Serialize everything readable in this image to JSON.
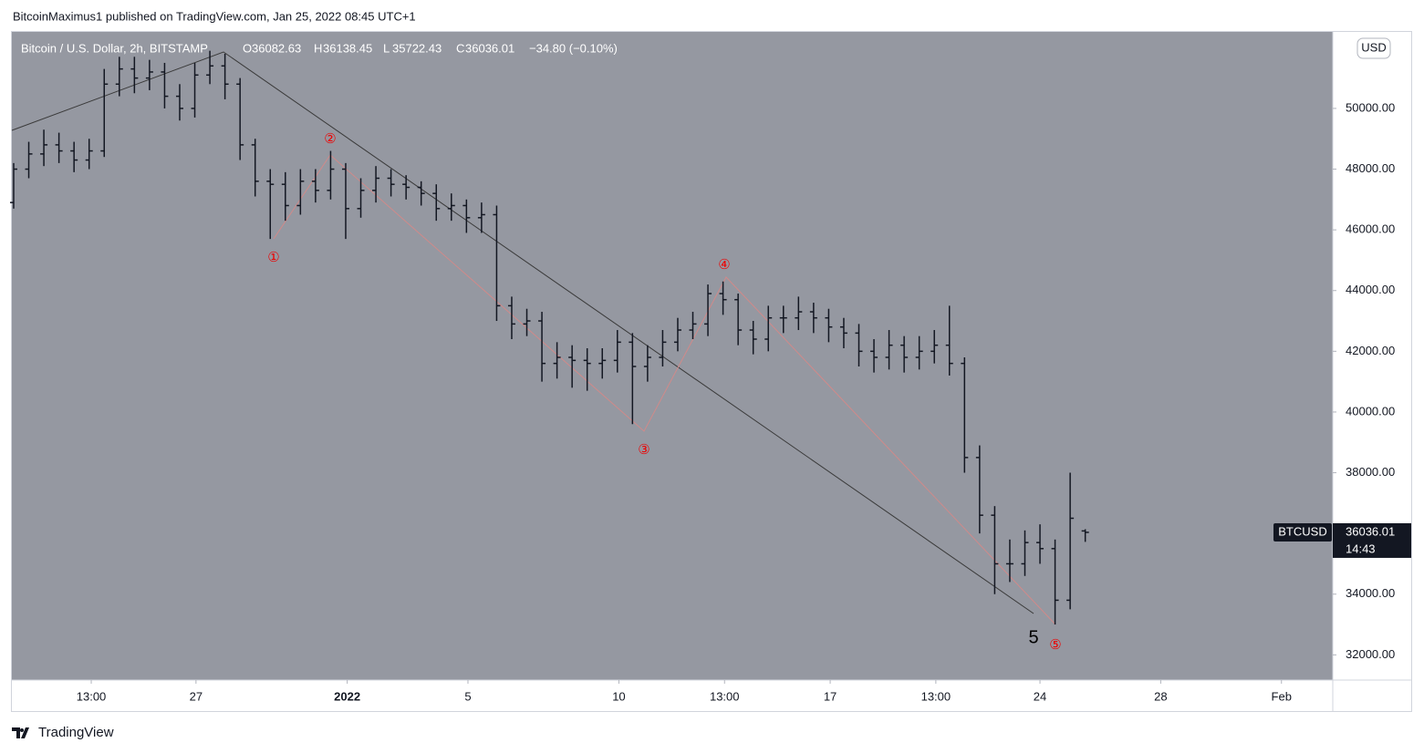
{
  "header": {
    "title": "BitcoinMaximus1 published on TradingView.com, Jan 25, 2022 08:45 UTC+1"
  },
  "footer": {
    "brand": "TradingView"
  },
  "chart_data": {
    "type": "ohlc",
    "title": "Bitcoin / U.S. Dollar, 2h, BITSTAMP",
    "legend_labels": [
      "O",
      "H",
      "L",
      "C"
    ],
    "change": "−34.80 (−0.10%)",
    "currency": "USD",
    "symbol": "BTCUSD",
    "countdown": "14:43",
    "color": "#131722",
    "background": "#9598a1",
    "open": [
      46900,
      48000,
      48500,
      48800,
      48600,
      48300,
      48600,
      50800,
      51300,
      51000,
      51200,
      50400,
      50000,
      51100,
      51400,
      50800,
      48800,
      47600,
      47500,
      46800,
      47600,
      47300,
      48000,
      46700,
      47300,
      47700,
      47500,
      47400,
      47200,
      46700,
      46800,
      46400,
      46500,
      43500,
      42900,
      43000,
      41600,
      41800,
      41700,
      41600,
      41700,
      42300,
      41500,
      41800,
      42300,
      42700,
      42900,
      43900,
      43700,
      42700,
      42400,
      43100,
      43100,
      43300,
      43100,
      42800,
      42600,
      42000,
      41800,
      42200,
      41800,
      42000,
      42200,
      41600,
      38500,
      36600,
      35000,
      35000,
      35700,
      35500,
      33800,
      36082.63
    ],
    "high": [
      48200,
      48900,
      49300,
      49200,
      48900,
      49000,
      51300,
      51700,
      51700,
      51600,
      51500,
      50800,
      51500,
      51900,
      51800,
      51000,
      49000,
      48000,
      47900,
      48000,
      48000,
      48600,
      48200,
      47700,
      48100,
      48000,
      47800,
      47600,
      47500,
      47200,
      47000,
      46900,
      46800,
      43800,
      43400,
      43300,
      42300,
      42200,
      42100,
      42100,
      42700,
      42600,
      42200,
      42700,
      43100,
      43300,
      44200,
      44300,
      43900,
      43000,
      43500,
      43500,
      43800,
      43600,
      43400,
      43100,
      42900,
      42400,
      42700,
      42500,
      42500,
      42700,
      43500,
      41800,
      38900,
      36900,
      35800,
      36100,
      36300,
      35800,
      38000,
      36138.45
    ],
    "low": [
      46700,
      47700,
      48100,
      48200,
      47900,
      48000,
      48400,
      50400,
      50500,
      50600,
      50000,
      49600,
      49700,
      50800,
      50300,
      48300,
      47100,
      45700,
      46300,
      46500,
      46900,
      47000,
      45700,
      46400,
      46900,
      47100,
      47000,
      46800,
      46300,
      46300,
      45900,
      45900,
      43000,
      42400,
      42500,
      41000,
      41100,
      40800,
      40700,
      41100,
      41300,
      39600,
      41000,
      41500,
      42000,
      42400,
      42500,
      43200,
      42200,
      41900,
      42000,
      42600,
      42700,
      42600,
      42300,
      42100,
      41500,
      41300,
      41400,
      41300,
      41400,
      41600,
      41200,
      38000,
      36000,
      34000,
      34400,
      34600,
      35000,
      33000,
      33500,
      35722.43
    ],
    "close": [
      48000,
      48500,
      48800,
      48600,
      48300,
      48600,
      50800,
      51300,
      51000,
      51200,
      50400,
      50000,
      51100,
      51400,
      50800,
      48800,
      47600,
      47500,
      46800,
      47600,
      47300,
      48000,
      46700,
      47300,
      47700,
      47500,
      47400,
      47200,
      46700,
      46800,
      46400,
      46500,
      43500,
      42900,
      43000,
      41600,
      41800,
      41700,
      41600,
      41700,
      42300,
      41500,
      41800,
      42300,
      42700,
      42900,
      43900,
      43700,
      42700,
      42400,
      43100,
      43100,
      43300,
      43100,
      42800,
      42600,
      42000,
      41800,
      42200,
      41800,
      42000,
      42200,
      41600,
      38500,
      36600,
      35000,
      35000,
      35700,
      35500,
      33800,
      36500,
      36036.01
    ],
    "xlim": [
      -0.12,
      87.4
    ],
    "xticks": [
      {
        "value": 5.14,
        "label": "13:00"
      },
      {
        "value": 12.08,
        "label": "27"
      },
      {
        "value": 22.1,
        "label": "2022"
      },
      {
        "value": 30.1,
        "label": "5"
      },
      {
        "value": 40.1,
        "label": "10"
      },
      {
        "value": 47.1,
        "label": "13:00"
      },
      {
        "value": 54.1,
        "label": "17"
      },
      {
        "value": 61.1,
        "label": "13:00"
      },
      {
        "value": 68.0,
        "label": "24"
      },
      {
        "value": 76.0,
        "label": "28"
      },
      {
        "value": 84.0,
        "label": "Feb"
      }
    ],
    "ylim": [
      31170,
      52520
    ],
    "yticks": [
      {
        "value": 32000,
        "label": "32000.00"
      },
      {
        "value": 34000,
        "label": "34000.00"
      },
      {
        "value": 36000,
        "label": "36000.00"
      },
      {
        "value": 38000,
        "label": "38000.00"
      },
      {
        "value": 40000,
        "label": "40000.00"
      },
      {
        "value": 42000,
        "label": "42000.00"
      },
      {
        "value": 44000,
        "label": "44000.00"
      },
      {
        "value": 46000,
        "label": "46000.00"
      },
      {
        "value": 48000,
        "label": "48000.00"
      },
      {
        "value": 50000,
        "label": "50000.00"
      }
    ],
    "annotations": [
      "①",
      "②",
      "③",
      "④",
      "⑤",
      "5"
    ]
  }
}
